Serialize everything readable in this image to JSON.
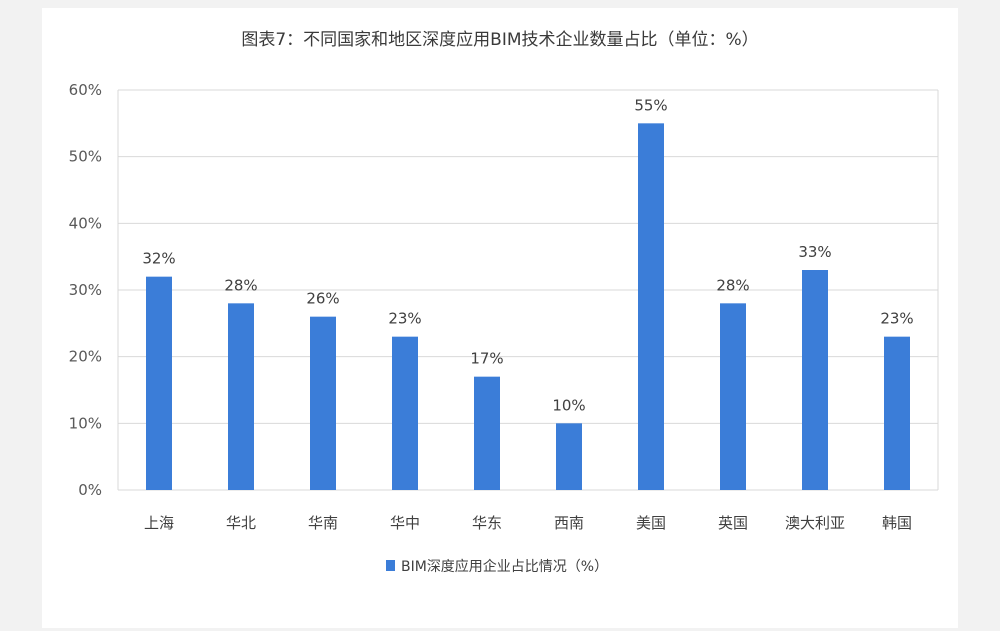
{
  "chart_data": {
    "type": "bar",
    "title": "图表7：不同国家和地区深度应用BIM技术企业数量占比（单位：%）",
    "categories": [
      "上海",
      "华北",
      "华南",
      "华中",
      "华东",
      "西南",
      "美国",
      "英国",
      "澳大利亚",
      "韩国"
    ],
    "series": [
      {
        "name": "BIM深度应用企业占比情况（%）",
        "values": [
          32,
          28,
          26,
          23,
          17,
          10,
          55,
          28,
          33,
          23
        ],
        "color": "#3b7dd8"
      }
    ],
    "data_labels": [
      "32%",
      "28%",
      "26%",
      "23%",
      "17%",
      "10%",
      "55%",
      "28%",
      "33%",
      "23%"
    ],
    "ylim": [
      0,
      60
    ],
    "yticks": [
      0,
      10,
      20,
      30,
      40,
      50,
      60
    ],
    "ytick_labels": [
      "0%",
      "10%",
      "20%",
      "30%",
      "40%",
      "50%",
      "60%"
    ],
    "grid": true,
    "legend_position": "bottom",
    "gridline_color": "#d9d9d9"
  }
}
